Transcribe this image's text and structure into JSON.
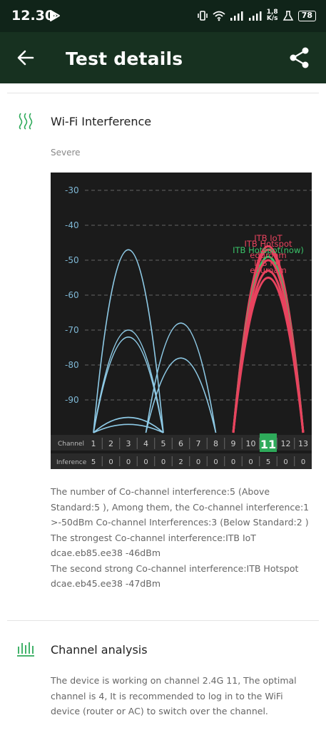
{
  "status_bar": {
    "time": "12.30",
    "net_speed_value": "1,8",
    "net_speed_unit": "K/s",
    "battery": "78"
  },
  "header": {
    "title": "Test details"
  },
  "wifi_interference": {
    "title": "Wi-Fi Interference",
    "severity": "Severe",
    "description": [
      "The number of Co-channel interference:5 (Above Standard:5 ), Among them, the Co-channel interference:1 >-50dBm Co-channel Interferences:3 (Below Standard:2 )",
      "The strongest Co-channel interference:ITB IoT dcae.eb85.ee38 -46dBm",
      "The second strong Co-channel interference:ITB Hotspot dcae.eb45.ee38 -47dBm"
    ]
  },
  "channel_analysis": {
    "title": "Channel analysis",
    "description": "The device is working on channel 2.4G 11, The optimal channel is 4, It is recommended to log in to the WiFi device (router or AC) to switch over the channel."
  },
  "chart_data": {
    "type": "area",
    "title": "",
    "xlabel": "Channel",
    "ylabel": "",
    "row_label_bottom": "Inference",
    "ylim": [
      -100,
      -25
    ],
    "y_ticks": [
      -30,
      -40,
      -50,
      -60,
      -70,
      -80,
      -90
    ],
    "channels": [
      1,
      2,
      3,
      4,
      5,
      6,
      7,
      8,
      9,
      10,
      11,
      12,
      13
    ],
    "inference": [
      5,
      0,
      0,
      0,
      0,
      2,
      0,
      0,
      0,
      0,
      5,
      0,
      0
    ],
    "current_channel": 11,
    "grid": true,
    "series": [
      {
        "name": "",
        "center": 3,
        "peak": -47,
        "color": "#8ecae6"
      },
      {
        "name": "",
        "center": 3,
        "peak": -70,
        "color": "#8ecae6"
      },
      {
        "name": "",
        "center": 3,
        "peak": -72,
        "color": "#8ecae6"
      },
      {
        "name": "",
        "center": 3,
        "peak": -95,
        "color": "#8ecae6"
      },
      {
        "name": "",
        "center": 3,
        "peak": -97,
        "color": "#8ecae6"
      },
      {
        "name": "",
        "center": 6,
        "peak": -68,
        "color": "#8ecae6"
      },
      {
        "name": "",
        "center": 6,
        "peak": -78,
        "color": "#8ecae6"
      },
      {
        "name": "ITB IoT",
        "center": 11,
        "peak": -46,
        "color": "#e8435e"
      },
      {
        "name": "ITB Hotspot",
        "center": 11,
        "peak": -47,
        "color": "#e8435e"
      },
      {
        "name": "ITB Hotspot(now)",
        "center": 11,
        "peak": -49,
        "color": "#3ac46a"
      },
      {
        "name": "eduroam",
        "center": 11,
        "peak": -50,
        "color": "#e8435e"
      },
      {
        "name": "ITB IoT",
        "center": 11,
        "peak": -53,
        "color": "#e8435e"
      },
      {
        "name": "eduroam",
        "center": 11,
        "peak": -55,
        "color": "#e8435e"
      }
    ],
    "labels": [
      {
        "text": "ITB IoT",
        "color": "#e8435e"
      },
      {
        "text": "ITB Hotspot",
        "color": "#e8435e"
      },
      {
        "text": "ITB Hotspot(now)",
        "color": "#3ac46a"
      },
      {
        "text": "eduroam",
        "color": "#e8435e"
      },
      {
        "text": "ITB IoT",
        "color": "#e8435e"
      },
      {
        "text": "eduroam",
        "color": "#e8435e"
      }
    ]
  }
}
